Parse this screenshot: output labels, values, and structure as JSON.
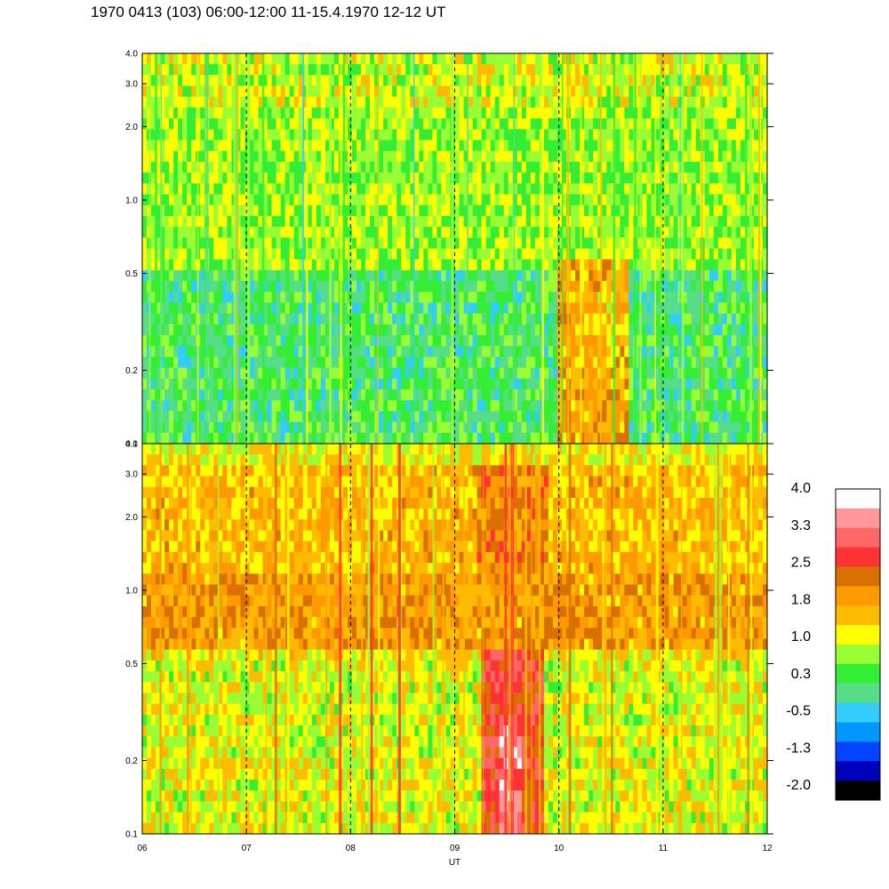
{
  "title": "1970 0413 (103) 06:00-12:00 11-15.4.1970  12-12 UT",
  "chart_data": {
    "type": "heatmap",
    "panels": [
      {
        "name": "",
        "y_scale": "log",
        "ylim": [
          0.1,
          4.0
        ],
        "y_ticks": [
          "0.1",
          "0.2",
          "0.5",
          "1.0",
          "2.0",
          "3.0",
          "4.0"
        ],
        "y_tick_values": [
          0.1,
          0.2,
          0.5,
          1.0,
          2.0,
          3.0,
          4.0
        ],
        "background_level": 0.3,
        "features": [
          {
            "x0": 10.0,
            "x1": 10.65,
            "y0": 0.1,
            "y1": 0.6,
            "level": 1.8
          },
          {
            "x0": 10.1,
            "x1": 10.55,
            "y0": 0.2,
            "y1": 0.4,
            "level": 1.5
          }
        ]
      },
      {
        "name": "",
        "y_scale": "log",
        "ylim": [
          0.1,
          4.0
        ],
        "y_ticks": [
          "0.1",
          "0.2",
          "0.5",
          "1.0",
          "2.0",
          "3.0",
          "4.0"
        ],
        "y_tick_values": [
          0.1,
          0.2,
          0.5,
          1.0,
          2.0,
          3.0,
          4.0
        ],
        "background_level": 1.3,
        "features": [
          {
            "x0": 9.25,
            "x1": 9.85,
            "y0": 0.1,
            "y1": 0.6,
            "level": 2.7
          },
          {
            "x0": 9.45,
            "x1": 9.65,
            "y0": 0.1,
            "y1": 0.3,
            "level": 3.2
          },
          {
            "x0": 9.2,
            "x1": 9.9,
            "y0": 1.2,
            "y1": 3.2,
            "level": 2.1
          }
        ]
      }
    ],
    "x_ticks": [
      "06",
      "07",
      "08",
      "09",
      "10",
      "11",
      "12"
    ],
    "x_tick_values": [
      6,
      7,
      8,
      9,
      10,
      11,
      12
    ],
    "xlim": [
      6,
      12
    ],
    "xlabel": "UT",
    "dashed_hour_lines": [
      7,
      8,
      9,
      10,
      11
    ],
    "colorbar": {
      "labels": [
        "4.0",
        "3.3",
        "2.5",
        "1.8",
        "1.0",
        "0.3",
        "-0.5",
        "-1.3",
        "-2.0"
      ],
      "range": [
        -2.0,
        4.0
      ],
      "colors": [
        "#ffffff",
        "#ff9999",
        "#ff6666",
        "#ff3333",
        "#d97000",
        "#ff9900",
        "#ffbb00",
        "#ffff00",
        "#99ff33",
        "#33ee33",
        "#55dd88",
        "#33ccff",
        "#0099ff",
        "#0044ff",
        "#0000bb",
        "#000000"
      ]
    }
  }
}
